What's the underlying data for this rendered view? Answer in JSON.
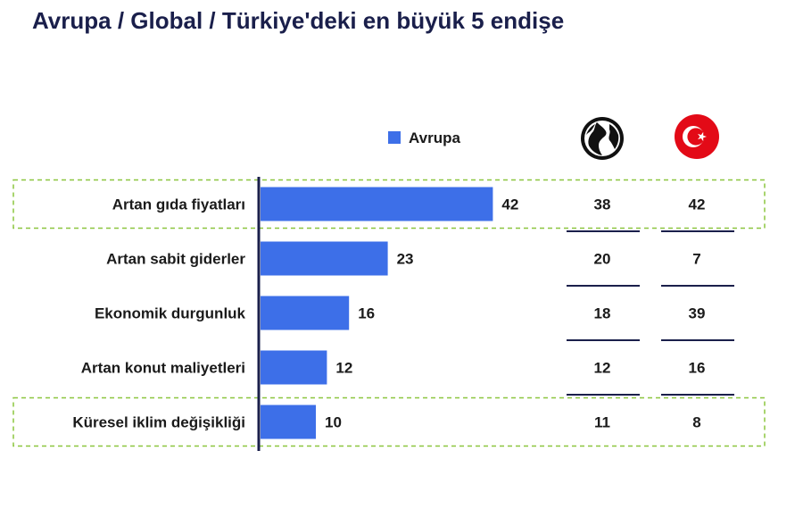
{
  "title": "Avrupa / Global / Türkiye'deki en büyük 5 endişe",
  "colors": {
    "bar": "#3d6fe8",
    "axis": "#1a1f4b",
    "highlight_border": "#8cc63f",
    "row_line": "#1a1f4b",
    "flag_red": "#e30a17"
  },
  "chart_data": {
    "type": "bar",
    "orientation": "horizontal",
    "categories": [
      "Artan gıda fiyatları",
      "Artan sabit giderler",
      "Ekonomik durgunluk",
      "Artan konut maliyetleri",
      "Küresel iklim değişikliği"
    ],
    "series": [
      {
        "name": "Avrupa",
        "values": [
          42,
          23,
          16,
          12,
          10
        ]
      }
    ],
    "table_columns": [
      {
        "icon": "globe-icon",
        "values": [
          38,
          20,
          18,
          12,
          11
        ]
      },
      {
        "icon": "turkey-flag-icon",
        "values": [
          42,
          7,
          39,
          16,
          8
        ]
      }
    ],
    "highlighted_rows": [
      0,
      4
    ],
    "legend": "top"
  }
}
